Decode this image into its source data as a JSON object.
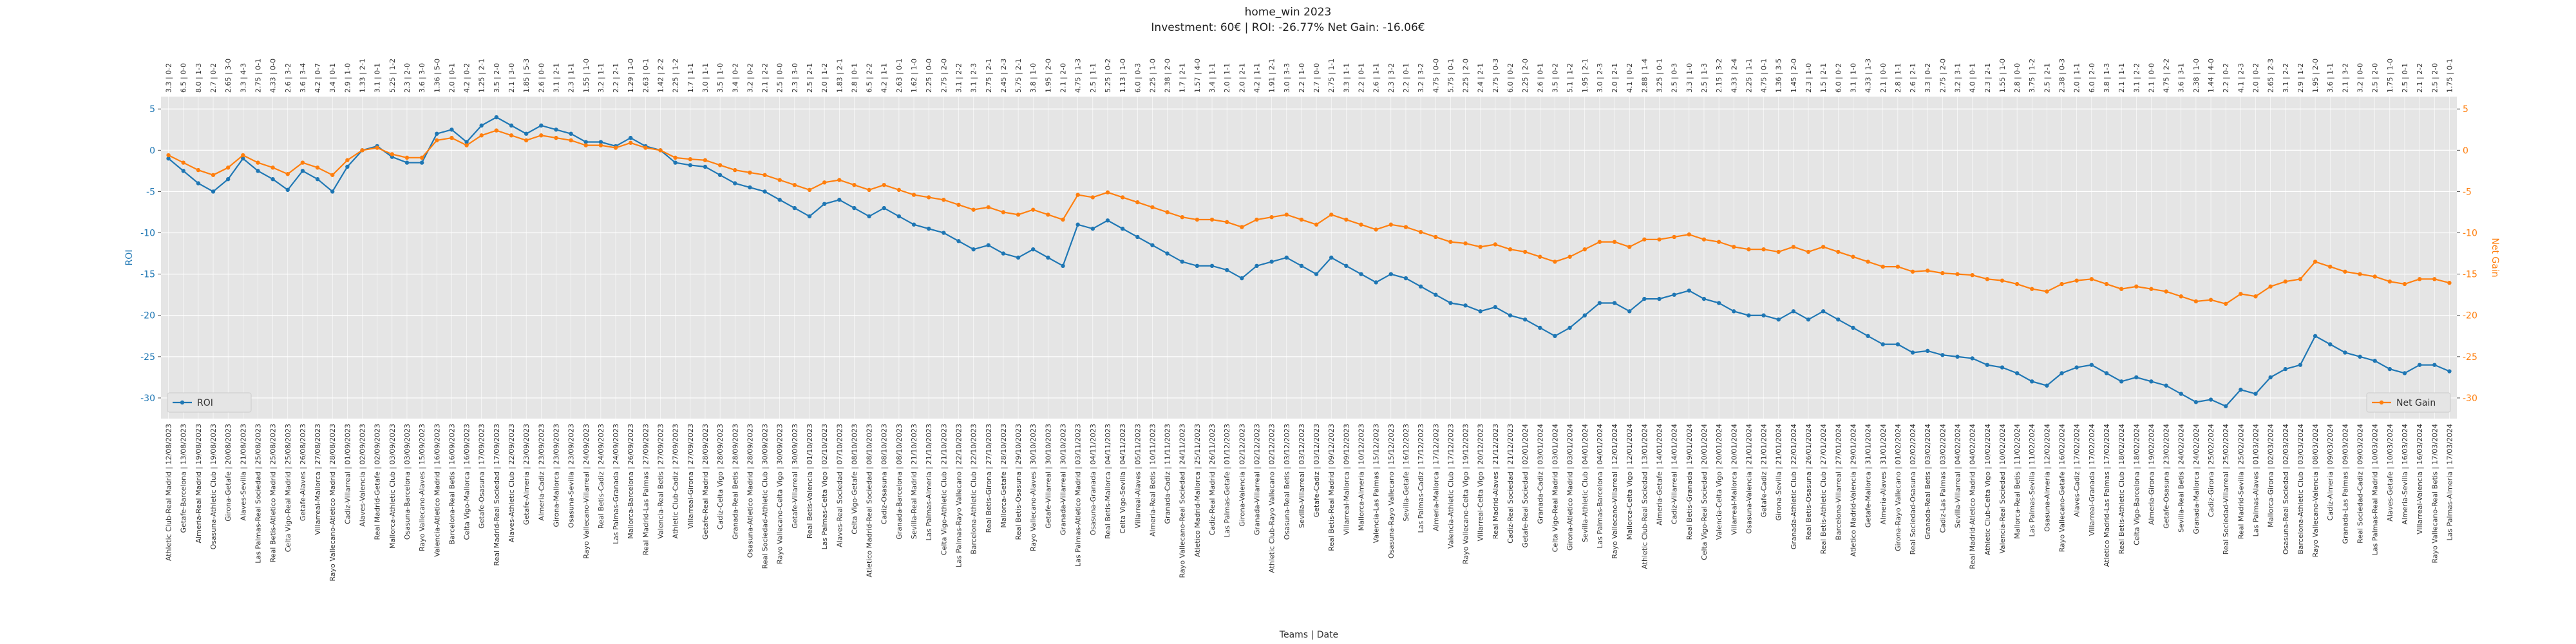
{
  "chart_data": {
    "type": "line",
    "title": "home_win 2023",
    "subtitle": "Investment: 60€ | ROI: -26.77% Net Gain: -16.06€",
    "x_label": "Teams | Date",
    "y_label": "ROI",
    "y2_label": "Net Gain",
    "ylim": [
      -32.5,
      6.5
    ],
    "yticks": [
      5,
      0,
      -5,
      -10,
      -15,
      -20,
      -25,
      -30
    ],
    "y2lim": [
      -32.5,
      6.5
    ],
    "y2ticks": [
      5,
      0,
      -5,
      -10,
      -15,
      -20,
      -25,
      -30
    ],
    "grid": true,
    "categories": [
      "Athletic Club-Real Madrid | 12/08/2023",
      "Getafe-Barcelona | 13/08/2023",
      "Almeria-Real Madrid | 19/08/2023",
      "Osasuna-Athletic Club | 19/08/2023",
      "Girona-Getafe | 20/08/2023",
      "Alaves-Sevilla | 21/08/2023",
      "Las Palmas-Real Sociedad | 25/08/2023",
      "Real Betis-Atletico Madrid | 25/08/2023",
      "Celta Vigo-Real Madrid | 25/08/2023",
      "Getafe-Alaves | 26/08/2023",
      "Villarreal-Mallorca | 27/08/2023",
      "Rayo Vallecano-Atletico Madrid | 28/08/2023",
      "Cadiz-Villarreal | 01/09/2023",
      "Alaves-Valencia | 02/09/2023",
      "Real Madrid-Getafe | 02/09/2023",
      "Mallorca-Athletic Club | 03/09/2023",
      "Osasuna-Barcelona | 03/09/2023",
      "Rayo Vallecano-Alaves | 15/09/2023",
      "Valencia-Atletico Madrid | 16/09/2023",
      "Barcelona-Real Betis | 16/09/2023",
      "Celta Vigo-Mallorca | 16/09/2023",
      "Getafe-Osasuna | 17/09/2023",
      "Real Madrid-Real Sociedad | 17/09/2023",
      "Alaves-Athletic Club | 22/09/2023",
      "Getafe-Almeria | 23/09/2023",
      "Almeria-Cadiz | 23/09/2023",
      "Girona-Mallorca | 23/09/2023",
      "Osasuna-Sevilla | 23/09/2023",
      "Rayo Vallecano-Villarreal | 24/09/2023",
      "Real Betis-Cadiz | 24/09/2023",
      "Las Palmas-Granada | 24/09/2023",
      "Mallorca-Barcelona | 26/09/2023",
      "Real Madrid-Las Palmas | 27/09/2023",
      "Valencia-Real Betis | 27/09/2023",
      "Athletic Club-Cadiz | 27/09/2023",
      "Villarreal-Girona | 27/09/2023",
      "Getafe-Real Madrid | 28/09/2023",
      "Cadiz-Celta Vigo | 28/09/2023",
      "Granada-Real Betis | 28/09/2023",
      "Osasuna-Atletico Madrid | 28/09/2023",
      "Real Sociedad-Athletic Club | 30/09/2023",
      "Rayo Vallecano-Celta Vigo | 30/09/2023",
      "Getafe-Villarreal | 30/09/2023",
      "Real Betis-Valencia | 01/10/2023",
      "Las Palmas-Celta Vigo | 02/10/2023",
      "Alaves-Real Sociedad | 07/10/2023",
      "Celta Vigo-Getafe | 08/10/2023",
      "Atletico Madrid-Real Sociedad | 08/10/2023",
      "Cadiz-Osasuna | 08/10/2023",
      "Granada-Barcelona | 08/10/2023",
      "Sevilla-Real Madrid | 21/10/2023",
      "Las Palmas-Almeria | 21/10/2023",
      "Celta Vigo-Athletic Club | 21/10/2023",
      "Las Palmas-Rayo Vallecano | 22/10/2023",
      "Barcelona-Athletic Club | 22/10/2023",
      "Real Betis-Girona | 27/10/2023",
      "Mallorca-Getafe | 28/10/2023",
      "Real Betis-Osasuna | 29/10/2023",
      "Rayo Vallecano-Alaves | 30/10/2023",
      "Getafe-Villarreal | 30/10/2023",
      "Granada-Villarreal | 30/10/2023",
      "Las Palmas-Atletico Madrid | 03/11/2023",
      "Osasuna-Granada | 04/11/2023",
      "Real Betis-Mallorca | 04/11/2023",
      "Celta Vigo-Sevilla | 04/11/2023",
      "Villarreal-Alaves | 05/11/2023",
      "Almeria-Real Betis | 10/11/2023",
      "Granada-Cadiz | 11/11/2023",
      "Rayo Vallecano-Real Sociedad | 24/11/2023",
      "Atletico Madrid-Mallorca | 25/11/2023",
      "Cadiz-Real Madrid | 26/11/2023",
      "Las Palmas-Getafe | 01/12/2023",
      "Girona-Valencia | 02/12/2023",
      "Granada-Villarreal | 02/12/2023",
      "Athletic Club-Rayo Vallecano | 02/12/2023",
      "Osasuna-Real Betis | 03/12/2023",
      "Sevilla-Villarreal | 03/12/2023",
      "Getafe-Cadiz | 03/12/2023",
      "Real Betis-Real Madrid | 09/12/2023",
      "Villarreal-Mallorca | 09/12/2023",
      "Mallorca-Almeria | 10/12/2023",
      "Valencia-Las Palmas | 15/12/2023",
      "Osasuna-Rayo Vallecano | 15/12/2023",
      "Sevilla-Getafe | 16/12/2023",
      "Las Palmas-Cadiz | 17/12/2023",
      "Almeria-Mallorca | 17/12/2023",
      "Valencia-Athletic Club | 17/12/2023",
      "Rayo Vallecano-Celta Vigo | 19/12/2023",
      "Villarreal-Celta Vigo | 20/12/2023",
      "Real Madrid-Alaves | 21/12/2023",
      "Cadiz-Real Sociedad | 21/12/2023",
      "Getafe-Real Sociedad | 02/01/2024",
      "Granada-Cadiz | 03/01/2024",
      "Celta Vigo-Real Madrid | 03/01/2024",
      "Girona-Atletico Madrid | 03/01/2024",
      "Sevilla-Athletic Club | 04/01/2024",
      "Las Palmas-Barcelona | 04/01/2024",
      "Rayo Vallecano-Villarreal | 12/01/2024",
      "Mallorca-Celta Vigo | 12/01/2024",
      "Athletic Club-Real Sociedad | 13/01/2024",
      "Almeria-Getafe | 14/01/2024",
      "Cadiz-Villarreal | 14/01/2024",
      "Real Betis-Granada | 19/01/2024",
      "Celta Vigo-Real Sociedad | 20/01/2024",
      "Valencia-Celta Vigo | 20/01/2024",
      "Villarreal-Mallorca | 20/01/2024",
      "Osasuna-Valencia | 21/01/2024",
      "Getafe-Cadiz | 21/01/2024",
      "Girona-Sevilla | 21/01/2024",
      "Granada-Athletic Club | 22/01/2024",
      "Real Betis-Osasuna | 26/01/2024",
      "Real Betis-Athletic Club | 27/01/2024",
      "Barcelona-Villarreal | 27/01/2024",
      "Atletico Madrid-Valencia | 29/01/2024",
      "Getafe-Mallorca | 31/01/2024",
      "Almeria-Alaves | 31/01/2024",
      "Girona-Rayo Vallecano | 01/02/2024",
      "Real Sociedad-Osasuna | 02/02/2024",
      "Granada-Real Betis | 03/02/2024",
      "Cadiz-Las Palmas | 03/02/2024",
      "Sevilla-Villarreal | 04/02/2024",
      "Real Madrid-Atletico Madrid | 04/02/2024",
      "Athletic Club-Celta Vigo | 10/02/2024",
      "Valencia-Real Sociedad | 10/02/2024",
      "Mallorca-Real Betis | 11/02/2024",
      "Las Palmas-Sevilla | 11/02/2024",
      "Osasuna-Almeria | 12/02/2024",
      "Rayo Vallecano-Getafe | 16/02/2024",
      "Alaves-Cadiz | 17/02/2024",
      "Villarreal-Granada | 17/02/2024",
      "Atletico Madrid-Las Palmas | 17/02/2024",
      "Real Betis-Athletic Club | 18/02/2024",
      "Celta Vigo-Barcelona | 18/02/2024",
      "Almeria-Girona | 19/02/2024",
      "Getafe-Osasuna | 23/02/2024",
      "Sevilla-Real Betis | 24/02/2024",
      "Granada-Mallorca | 24/02/2024",
      "Cadiz-Girona | 25/02/2024",
      "Real Sociedad-Villarreal | 25/02/2024",
      "Real Madrid-Sevilla | 25/02/2024",
      "Las Palmas-Alaves | 01/03/2024",
      "Mallorca-Girona | 02/03/2024",
      "Osasuna-Real Sociedad | 02/03/2024",
      "Barcelona-Athletic Club | 03/03/2024",
      "Rayo Vallecano-Valencia | 08/03/2024",
      "Cadiz-Almeria | 09/03/2024",
      "Granada-Las Palmas | 09/03/2024",
      "Real Sociedad-Cadiz | 09/03/2024",
      "Las Palmas-Real Madrid | 10/03/2024",
      "Alaves-Getafe | 10/03/2024",
      "Almeria-Sevilla | 16/03/2024",
      "Villarreal-Valencia | 16/03/2024",
      "Rayo Vallecano-Real Betis | 17/03/2024",
      "Las Palmas-Almeria | 17/03/2024"
    ],
    "top_labels": [
      "3.3 | 0-2",
      "6.5 | 0-0",
      "8.0 | 1-3",
      "2.7 | 0-2",
      "2.65 | 3-0",
      "3.3 | 4-3",
      "2.75 | 0-1",
      "4.33 | 0-0",
      "2.6 | 3-2",
      "3.6 | 3-4",
      "4.2 | 0-7",
      "3.4 | 0-1",
      "2.9 | 1-0",
      "1.33 | 2-1",
      "3.1 | 0-1",
      "5.25 | 1-2",
      "2.3 | 2-0",
      "3.6 | 3-0",
      "1.36 | 5-0",
      "2.0 | 0-1",
      "4.2 | 0-2",
      "1.25 | 2-1",
      "3.5 | 2-0",
      "2.1 | 3-0",
      "1.85 | 5-3",
      "2.6 | 0-0",
      "3.1 | 2-1",
      "2.3 | 1-1",
      "1.55 | 1-0",
      "3.2 | 1-1",
      "2.2 | 2-1",
      "1.29 | 1-0",
      "2.63 | 0-1",
      "1.42 | 2-2",
      "2.25 | 1-2",
      "1.7 | 1-1",
      "3.0 | 1-1",
      "3.5 | 1-0",
      "3.4 | 0-2",
      "3.2 | 0-2",
      "2.1 | 2-2",
      "2.5 | 0-0",
      "2.3 | 3-0",
      "2.5 | 2-1",
      "2.0 | 1-2",
      "1.83 | 2-1",
      "2.8 | 0-1",
      "6.5 | 2-2",
      "4.2 | 1-1",
      "2.63 | 0-1",
      "1.62 | 1-0",
      "2.25 | 0-0",
      "2.75 | 2-0",
      "3.1 | 2-2",
      "3.1 | 2-3",
      "2.75 | 2-1",
      "2.45 | 2-3",
      "5.75 | 2-1",
      "3.8 | 1-0",
      "1.95 | 2-0",
      "2.1 | 2-0",
      "4.75 | 1-3",
      "2.5 | 1-1",
      "5.25 | 0-2",
      "1.13 | 1-0",
      "6.0 | 0-3",
      "2.25 | 1-0",
      "2.38 | 2-0",
      "1.7 | 2-1",
      "1.57 | 4-0",
      "3.4 | 1-1",
      "2.0 | 1-1",
      "2.0 | 2-1",
      "4.2 | 1-1",
      "1.91 | 2-1",
      "3.0 | 3-3",
      "2.2 | 1-0",
      "2.7 | 0-0",
      "2.75 | 1-1",
      "3.3 | 1-1",
      "2.2 | 0-1",
      "2.6 | 1-1",
      "2.3 | 3-2",
      "2.2 | 0-1",
      "3.2 | 3-2",
      "4.75 | 0-0",
      "5.75 | 0-1",
      "2.25 | 2-0",
      "2.4 | 2-1",
      "2.75 | 0-3",
      "6.0 | 0-2",
      "2.25 | 2-0",
      "2.6 | 0-1",
      "3.5 | 0-2",
      "5.1 | 1-2",
      "1.95 | 2-1",
      "3.0 | 2-3",
      "2.0 | 2-1",
      "4.1 | 0-2",
      "2.88 | 1-4",
      "3.25 | 0-1",
      "2.5 | 0-3",
      "3.3 | 1-0",
      "2.5 | 1-3",
      "2.15 | 3-2",
      "4.33 | 2-4",
      "2.25 | 1-1",
      "4.75 | 0-1",
      "1.36 | 3-5",
      "1.45 | 2-0",
      "2.3 | 1-0",
      "1.5 | 2-1",
      "6.0 | 0-2",
      "3.1 | 1-0",
      "4.33 | 1-3",
      "2.1 | 0-0",
      "2.8 | 1-1",
      "2.6 | 2-1",
      "3.3 | 0-2",
      "2.75 | 2-0",
      "3.2 | 3-1",
      "4.0 | 0-1",
      "2.3 | 2-1",
      "1.55 | 1-0",
      "2.8 | 0-0",
      "3.75 | 1-2",
      "2.5 | 2-1",
      "2.38 | 0-3",
      "2.0 | 1-1",
      "6.0 | 2-0",
      "3.8 | 1-3",
      "2.1 | 1-1",
      "3.1 | 2-2",
      "2.1 | 0-0",
      "4.75 | 2-2",
      "3.6 | 3-1",
      "2.38 | 1-0",
      "1.44 | 4-0",
      "2.2 | 0-2",
      "4.1 | 2-3",
      "2.0 | 0-2",
      "2.65 | 2-3",
      "3.1 | 2-2",
      "2.9 | 1-2",
      "1.95 | 2-0",
      "3.6 | 1-1",
      "2.1 | 3-2",
      "3.2 | 0-0",
      "2.5 | 2-0",
      "1.75 | 1-0",
      "2.5 | 0-1",
      "2.1 | 2-2",
      "2.5 | 2-0",
      "1.75 | 0-1"
    ],
    "series": [
      {
        "name": "ROI",
        "color": "#1f77b4",
        "axis": "y",
        "legend": "lower left",
        "values": [
          -1,
          -2.5,
          -4,
          -5,
          -3.5,
          -1,
          -2.5,
          -3.5,
          -4.8,
          -2.5,
          -3.5,
          -5,
          -2,
          0,
          0.5,
          -0.8,
          -1.5,
          -1.5,
          2,
          2.5,
          1,
          3,
          4,
          3,
          2,
          3,
          2.5,
          2,
          1,
          1,
          0.5,
          1.5,
          0.5,
          0,
          -1.5,
          -1.8,
          -2,
          -3,
          -4,
          -4.5,
          -5,
          -6,
          -7,
          -8,
          -6.5,
          -6,
          -7,
          -8,
          -7,
          -8,
          -9,
          -9.5,
          -10,
          -11,
          -12,
          -11.5,
          -12.5,
          -13,
          -12,
          -13,
          -14,
          -9,
          -9.5,
          -8.5,
          -9.5,
          -10.5,
          -11.5,
          -12.5,
          -13.5,
          -14,
          -14,
          -14.5,
          -15.5,
          -14,
          -13.5,
          -13,
          -14,
          -15,
          -13,
          -14,
          -15,
          -16,
          -15,
          -15.5,
          -16.5,
          -17.5,
          -18.5,
          -18.8,
          -19.5,
          -19,
          -20,
          -20.5,
          -21.5,
          -22.5,
          -21.5,
          -20,
          -18.5,
          -18.5,
          -19.5,
          -18,
          -18,
          -17.5,
          -17,
          -18,
          -18.5,
          -19.5,
          -20,
          -20,
          -20.5,
          -19.5,
          -20.5,
          -19.5,
          -20.5,
          -21.5,
          -22.5,
          -23.5,
          -23.5,
          -24.5,
          -24.3,
          -24.8,
          -25,
          -25.2,
          -26,
          -26.3,
          -27,
          -28,
          -28.5,
          -27,
          -26.3,
          -26,
          -27,
          -28,
          -27.5,
          -28,
          -28.5,
          -29.5,
          -30.5,
          -30.2,
          -31,
          -29,
          -29.5,
          -27.5,
          -26.5,
          -26,
          -22.5,
          -23.5,
          -24.5,
          -25,
          -25.5,
          -26.5,
          -27,
          -26,
          -26,
          -26.77
        ]
      },
      {
        "name": "Net Gain",
        "color": "#ff7f0e",
        "axis": "y2",
        "legend": "lower right",
        "values": [
          -0.6,
          -1.5,
          -2.4,
          -3,
          -2.1,
          -0.6,
          -1.5,
          -2.1,
          -2.88,
          -1.5,
          -2.1,
          -3,
          -1.2,
          0,
          0.3,
          -0.48,
          -0.9,
          -0.9,
          1.2,
          1.5,
          0.6,
          1.8,
          2.4,
          1.8,
          1.2,
          1.8,
          1.5,
          1.2,
          0.6,
          0.6,
          0.3,
          0.9,
          0.3,
          0,
          -0.9,
          -1.08,
          -1.2,
          -1.8,
          -2.4,
          -2.7,
          -3,
          -3.6,
          -4.2,
          -4.8,
          -3.9,
          -3.6,
          -4.2,
          -4.8,
          -4.2,
          -4.8,
          -5.4,
          -5.7,
          -6,
          -6.6,
          -7.2,
          -6.9,
          -7.5,
          -7.8,
          -7.2,
          -7.8,
          -8.4,
          -5.4,
          -5.7,
          -5.1,
          -5.7,
          -6.3,
          -6.9,
          -7.5,
          -8.1,
          -8.4,
          -8.4,
          -8.7,
          -9.3,
          -8.4,
          -8.1,
          -7.8,
          -8.4,
          -9,
          -7.8,
          -8.4,
          -9,
          -9.6,
          -9,
          -9.3,
          -9.9,
          -10.5,
          -11.1,
          -11.28,
          -11.7,
          -11.4,
          -12,
          -12.3,
          -12.9,
          -13.5,
          -12.9,
          -12,
          -11.1,
          -11.1,
          -11.7,
          -10.8,
          -10.8,
          -10.5,
          -10.2,
          -10.8,
          -11.1,
          -11.7,
          -12,
          -12,
          -12.3,
          -11.7,
          -12.3,
          -11.7,
          -12.3,
          -12.9,
          -13.5,
          -14.1,
          -14.1,
          -14.7,
          -14.58,
          -14.88,
          -15,
          -15.12,
          -15.6,
          -15.78,
          -16.2,
          -16.8,
          -17.1,
          -16.2,
          -15.78,
          -15.6,
          -16.2,
          -16.8,
          -16.5,
          -16.8,
          -17.1,
          -17.7,
          -18.3,
          -18.12,
          -18.6,
          -17.4,
          -17.7,
          -16.5,
          -15.9,
          -15.6,
          -13.5,
          -14.1,
          -14.7,
          -15,
          -15.3,
          -15.9,
          -16.2,
          -15.6,
          -15.6,
          -16.06
        ]
      }
    ]
  }
}
